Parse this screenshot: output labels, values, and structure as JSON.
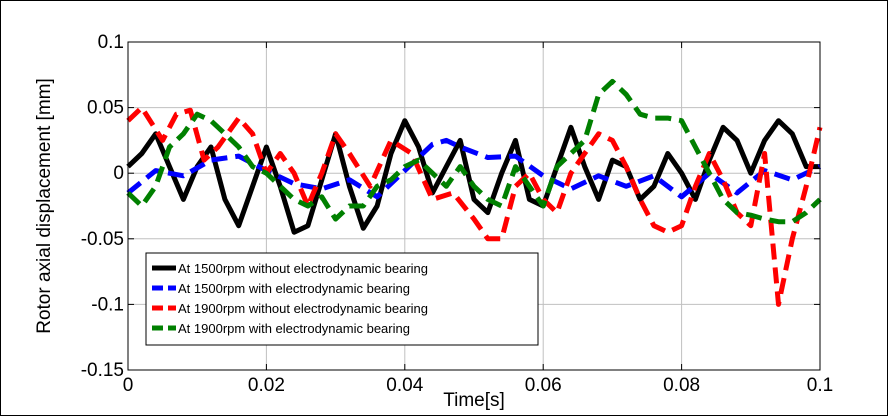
{
  "chart_data": {
    "type": "line",
    "title": "",
    "xlabel": "Time[s]",
    "ylabel": "Rotor axial displacement [mm]",
    "xlim": [
      0,
      0.1
    ],
    "ylim": [
      -0.15,
      0.1
    ],
    "xticks": [
      "0",
      "0.02",
      "0.04",
      "0.06",
      "0.08",
      "0.1"
    ],
    "yticks": [
      "0.1",
      "0.05",
      "0",
      "-0.05",
      "-0.1",
      "-0.15"
    ],
    "grid": true,
    "legend_position": "bottom-left",
    "series": [
      {
        "name": "At 1500rpm without electrodynamic bearing",
        "color": "#000000",
        "dash": "solid",
        "x": [
          0,
          0.002,
          0.004,
          0.006,
          0.008,
          0.01,
          0.012,
          0.014,
          0.016,
          0.018,
          0.02,
          0.022,
          0.024,
          0.026,
          0.028,
          0.03,
          0.032,
          0.034,
          0.036,
          0.038,
          0.04,
          0.042,
          0.044,
          0.046,
          0.048,
          0.05,
          0.052,
          0.054,
          0.056,
          0.058,
          0.06,
          0.062,
          0.064,
          0.066,
          0.068,
          0.07,
          0.072,
          0.074,
          0.076,
          0.078,
          0.08,
          0.082,
          0.084,
          0.086,
          0.088,
          0.09,
          0.092,
          0.094,
          0.096,
          0.098,
          0.1
        ],
        "y": [
          0.005,
          0.015,
          0.03,
          0.005,
          -0.02,
          0.005,
          0.02,
          -0.02,
          -0.04,
          -0.01,
          0.02,
          -0.01,
          -0.045,
          -0.04,
          -0.005,
          0.03,
          -0.01,
          -0.042,
          -0.025,
          0.015,
          0.04,
          0.02,
          -0.015,
          0.005,
          0.025,
          -0.02,
          -0.03,
          0.0,
          0.025,
          -0.02,
          -0.025,
          0.005,
          0.035,
          0.005,
          -0.02,
          0.01,
          0.005,
          -0.02,
          -0.01,
          0.015,
          0.0,
          -0.02,
          0.01,
          0.035,
          0.025,
          0.0,
          0.025,
          0.04,
          0.03,
          0.005,
          0.005
        ]
      },
      {
        "name": "At 1500rpm with electrodynamic bearing",
        "color": "#0000ff",
        "dash": "dashed",
        "x": [
          0,
          0.004,
          0.008,
          0.012,
          0.016,
          0.02,
          0.024,
          0.028,
          0.032,
          0.036,
          0.04,
          0.044,
          0.046,
          0.048,
          0.052,
          0.056,
          0.06,
          0.064,
          0.068,
          0.072,
          0.076,
          0.08,
          0.084,
          0.088,
          0.092,
          0.096,
          0.1
        ],
        "y": [
          -0.015,
          0.002,
          -0.002,
          0.01,
          0.013,
          0.002,
          -0.008,
          -0.012,
          -0.005,
          -0.018,
          0.002,
          0.022,
          0.025,
          0.02,
          0.012,
          0.013,
          -0.002,
          -0.012,
          -0.002,
          -0.01,
          -0.002,
          -0.018,
          0.0,
          -0.015,
          0.002,
          -0.005,
          0.005
        ]
      },
      {
        "name": "At 1900rpm without electrodynamic bearing",
        "color": "#ff0000",
        "dash": "dashed",
        "x": [
          0,
          0.002,
          0.005,
          0.007,
          0.009,
          0.011,
          0.013,
          0.016,
          0.018,
          0.02,
          0.022,
          0.024,
          0.026,
          0.028,
          0.03,
          0.032,
          0.035,
          0.038,
          0.041,
          0.044,
          0.047,
          0.05,
          0.052,
          0.054,
          0.056,
          0.058,
          0.06,
          0.062,
          0.064,
          0.066,
          0.068,
          0.07,
          0.072,
          0.074,
          0.076,
          0.078,
          0.08,
          0.082,
          0.084,
          0.086,
          0.088,
          0.09,
          0.092,
          0.094,
          0.096,
          0.098,
          0.1
        ],
        "y": [
          0.04,
          0.05,
          0.025,
          0.045,
          0.048,
          0.01,
          0.02,
          0.042,
          0.03,
          0.0,
          0.015,
          0.0,
          -0.025,
          0.0,
          0.03,
          0.015,
          -0.01,
          0.025,
          0.015,
          -0.02,
          -0.015,
          -0.035,
          -0.05,
          -0.05,
          -0.01,
          0.0,
          -0.02,
          -0.03,
          0.0,
          0.015,
          0.03,
          0.025,
          0.005,
          -0.02,
          -0.04,
          -0.045,
          -0.04,
          -0.01,
          0.015,
          -0.005,
          -0.03,
          -0.04,
          0.015,
          -0.1,
          -0.05,
          -0.01,
          0.035
        ]
      },
      {
        "name": "At 1900rpm with electrodynamic bearing",
        "color": "#008000",
        "dash": "dashed",
        "x": [
          0,
          0.002,
          0.004,
          0.006,
          0.008,
          0.01,
          0.012,
          0.014,
          0.016,
          0.018,
          0.02,
          0.022,
          0.024,
          0.026,
          0.028,
          0.03,
          0.032,
          0.034,
          0.036,
          0.038,
          0.04,
          0.042,
          0.044,
          0.046,
          0.048,
          0.05,
          0.052,
          0.054,
          0.056,
          0.058,
          0.06,
          0.062,
          0.064,
          0.066,
          0.068,
          0.07,
          0.072,
          0.074,
          0.076,
          0.078,
          0.08,
          0.082,
          0.084,
          0.086,
          0.088,
          0.09,
          0.092,
          0.094,
          0.096,
          0.098,
          0.1
        ],
        "y": [
          -0.015,
          -0.025,
          -0.01,
          0.02,
          0.03,
          0.045,
          0.04,
          0.03,
          0.02,
          0.005,
          0.0,
          -0.01,
          -0.02,
          -0.025,
          -0.018,
          -0.035,
          -0.025,
          -0.025,
          -0.01,
          -0.005,
          0.005,
          0.01,
          0.0,
          -0.01,
          0.005,
          -0.01,
          -0.02,
          -0.025,
          0.005,
          -0.01,
          -0.025,
          0.005,
          0.015,
          0.025,
          0.06,
          0.07,
          0.06,
          0.045,
          0.042,
          0.042,
          0.04,
          0.02,
          0.0,
          -0.02,
          -0.03,
          -0.032,
          -0.035,
          -0.037,
          -0.037,
          -0.03,
          -0.02
        ]
      }
    ]
  }
}
